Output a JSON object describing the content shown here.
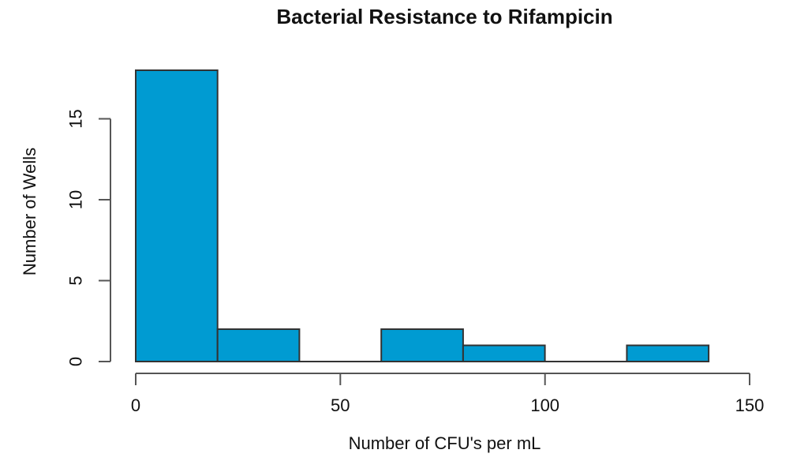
{
  "chart_data": {
    "type": "bar",
    "subtype": "histogram",
    "title": "Bacterial Resistance to Rifampicin",
    "xlabel": "Number of CFU's per mL",
    "ylabel": "Number of Wells",
    "bin_edges": [
      0,
      20,
      40,
      60,
      80,
      100,
      120,
      140
    ],
    "counts": [
      18,
      2,
      0,
      2,
      1,
      0,
      1
    ],
    "x_ticks": [
      0,
      50,
      100,
      150
    ],
    "y_ticks": [
      0,
      5,
      10,
      15
    ],
    "xlim": [
      0,
      150
    ],
    "ylim": [
      0,
      18
    ],
    "grid": false,
    "legend_position": "none",
    "colors": {
      "bar_fill": "#009bd2",
      "bar_stroke": "#333333",
      "axis": "#555555",
      "text": "#111111",
      "background": "#ffffff"
    }
  }
}
